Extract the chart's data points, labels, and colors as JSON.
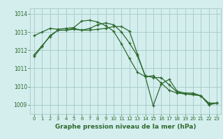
{
  "title": "Graphe pression niveau de la mer (hPa)",
  "background_color": "#d4eeee",
  "grid_color": "#aacccc",
  "line_color": "#2d6a2d",
  "xlim": [
    -0.5,
    23.5
  ],
  "ylim": [
    1008.5,
    1014.3
  ],
  "yticks": [
    1009,
    1010,
    1011,
    1012,
    1013,
    1014
  ],
  "xticks": [
    0,
    1,
    2,
    3,
    4,
    5,
    6,
    7,
    8,
    9,
    10,
    11,
    12,
    13,
    14,
    15,
    16,
    17,
    18,
    19,
    20,
    21,
    22,
    23
  ],
  "series": [
    [
      1011.65,
      1012.2,
      1012.8,
      1013.1,
      1013.1,
      1013.2,
      1013.1,
      1013.2,
      1013.4,
      1013.5,
      1013.4,
      1013.0,
      1012.4,
      1011.7,
      1010.6,
      1010.5,
      1010.5,
      1010.1,
      1009.7,
      1009.6,
      1009.6,
      1009.5,
      1009.0,
      1009.1
    ],
    [
      1012.8,
      1013.0,
      1013.2,
      1013.15,
      1013.2,
      1013.25,
      1013.6,
      1013.65,
      1013.55,
      1013.35,
      1013.05,
      1012.35,
      1011.55,
      1010.8,
      1010.55,
      1010.6,
      1010.2,
      1009.8,
      1009.65,
      1009.6,
      1009.55,
      1009.5,
      1009.1,
      1009.1
    ],
    [
      1011.75,
      1012.25,
      1012.75,
      1013.1,
      1013.1,
      1013.15,
      1013.1,
      1013.1,
      1013.15,
      1013.2,
      1013.3,
      1013.3,
      1013.05,
      1011.8,
      1010.55,
      1008.95,
      1010.15,
      1010.4,
      1009.75,
      1009.65,
      1009.65,
      1009.5,
      1009.05,
      1009.1
    ]
  ]
}
